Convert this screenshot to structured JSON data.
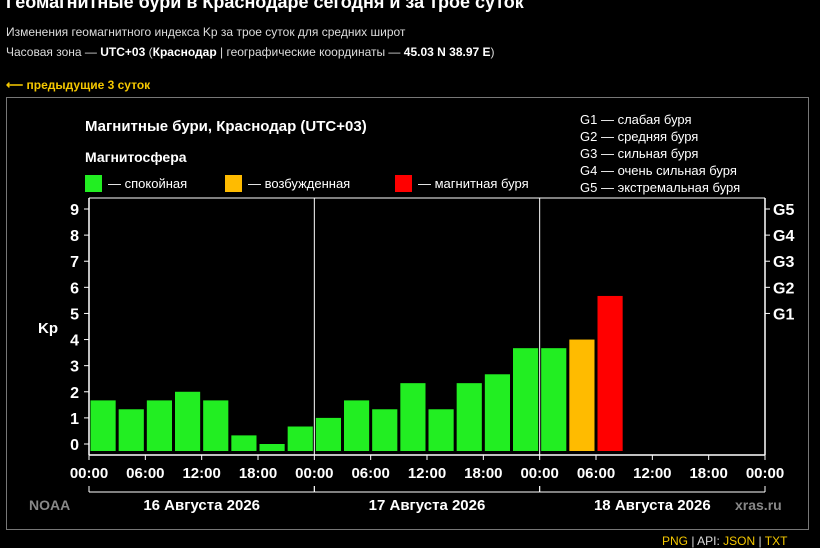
{
  "header": {
    "title": "Геомагнитные бури в Краснодаре сегодня и за трое суток",
    "subtitle": "Изменения геомагнитного индекса Kp за трое суток для средних широт",
    "tz_prefix": "Часовая зона — ",
    "tz_value": "UTC+03",
    "city": "Краснодар",
    "coords_prefix": " | географические координаты — ",
    "coords_value": "45.03 N 38.97 E",
    "prev_link": "⟵ предыдущие 3 суток"
  },
  "chart_data": {
    "type": "bar",
    "title": "Магнитные бури, Краснодар (UTC+03)",
    "legend_title": "Магнитосфера",
    "legend": [
      {
        "label": "— спокойная",
        "color": "#22ee22"
      },
      {
        "label": "— возбужденная",
        "color": "#ffbb00"
      },
      {
        "label": "— магнитная буря",
        "color": "#ff0000"
      }
    ],
    "g_legend": [
      "G1 — слабая буря",
      "G2 — средняя буря",
      "G3 — сильная буря",
      "G4 — очень сильная буря",
      "G5 — экстремальная буря"
    ],
    "ylabel": "Kp",
    "ylim": [
      0,
      9
    ],
    "yticks": [
      "0",
      "1",
      "2",
      "3",
      "4",
      "5",
      "6",
      "7",
      "8",
      "9"
    ],
    "right_ticks": [
      {
        "label": "G1",
        "value": 5
      },
      {
        "label": "G2",
        "value": 6
      },
      {
        "label": "G3",
        "value": 7
      },
      {
        "label": "G4",
        "value": 8
      },
      {
        "label": "G5",
        "value": 9
      }
    ],
    "xticks": [
      "00:00",
      "06:00",
      "12:00",
      "18:00",
      "00:00",
      "06:00",
      "12:00",
      "18:00",
      "00:00",
      "06:00",
      "12:00",
      "18:00",
      "00:00"
    ],
    "days": [
      "16 Августа 2026",
      "17 Августа 2026",
      "18 Августа 2026"
    ],
    "bar_hours": 3,
    "values": [
      1.67,
      1.33,
      1.67,
      2.0,
      1.67,
      0.33,
      0.0,
      0.67,
      1.0,
      1.67,
      1.33,
      2.33,
      1.33,
      2.33,
      2.67,
      3.67,
      3.67,
      4.0,
      5.67
    ],
    "grid": false,
    "watermark_left": "NOAA",
    "watermark_right": "xras.ru"
  },
  "footer": {
    "png": "PNG",
    "sep1": " | API: ",
    "json": "JSON",
    "sep2": " | ",
    "txt": "TXT"
  }
}
